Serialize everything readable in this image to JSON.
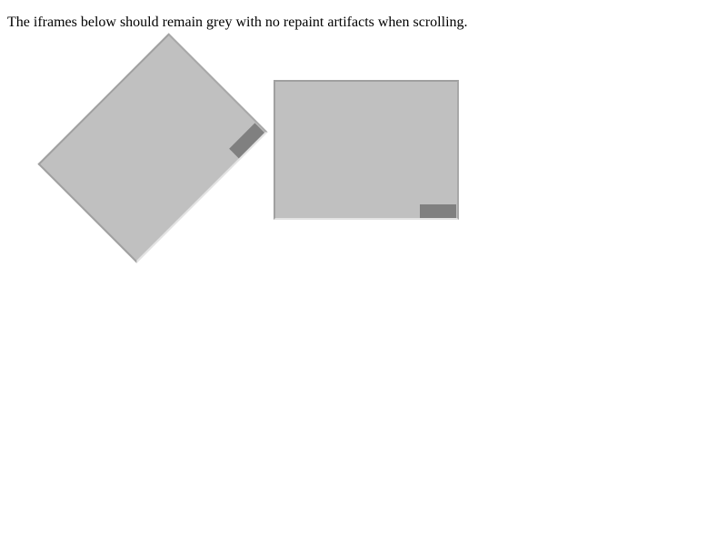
{
  "page": {
    "instruction_text": "The iframes below should remain grey with no repaint artifacts when scrolling."
  },
  "frames": [
    {
      "name": "rotated-iframe",
      "rotation_deg": -45,
      "fill": "#c0c0c0",
      "thumb_color": "#808080"
    },
    {
      "name": "straight-iframe",
      "rotation_deg": 0,
      "fill": "#c0c0c0",
      "thumb_color": "#808080"
    }
  ]
}
